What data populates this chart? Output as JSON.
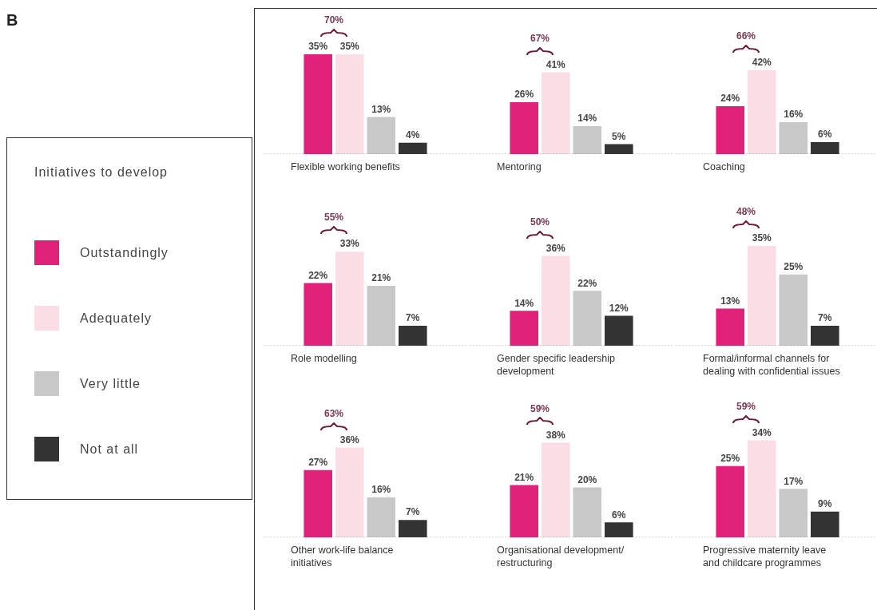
{
  "chart_data": [
    {
      "type": "other",
      "title": "B"
    },
    {
      "type": "bar",
      "xlabel": "Flexible working benefits",
      "categories": [
        null
      ],
      "tick_labels": false,
      "legend": "left",
      "legend_title": "Initiatives to develop",
      "annotations": [
        "70%"
      ],
      "series": [
        {
          "name": "Outstandingly",
          "color": "#e0217a",
          "values": [
            35
          ],
          "value_labels": [
            "35%"
          ]
        },
        {
          "name": "Adequately",
          "color": "#fbdde6",
          "values": [
            35
          ],
          "value_labels": [
            "35%"
          ]
        },
        {
          "name": "Very little",
          "color": "#c8c8c8",
          "values": [
            13
          ],
          "value_labels": [
            "13%"
          ]
        },
        {
          "name": "Not at all",
          "color": "#333333",
          "values": [
            4
          ],
          "value_labels": [
            "4%"
          ]
        }
      ]
    },
    {
      "type": "bar",
      "xlabel": "Mentoring",
      "categories": [
        null
      ],
      "tick_labels": false,
      "annotations": [
        "67%"
      ],
      "series": [
        {
          "color": "#e0217a",
          "values": [
            26
          ],
          "value_labels": [
            "26%"
          ]
        },
        {
          "color": "#fbdde6",
          "values": [
            41
          ],
          "value_labels": [
            "41%"
          ]
        },
        {
          "color": "#c8c8c8",
          "values": [
            14
          ],
          "value_labels": [
            "14%"
          ]
        },
        {
          "color": "#333333",
          "values": [
            5
          ],
          "value_labels": [
            "5%"
          ]
        }
      ]
    },
    {
      "type": "bar",
      "xlabel": "Coaching",
      "categories": [
        null
      ],
      "tick_labels": false,
      "annotations": [
        "66%"
      ],
      "series": [
        {
          "color": "#e0217a",
          "values": [
            24
          ],
          "value_labels": [
            "24%"
          ]
        },
        {
          "color": "#fbdde6",
          "values": [
            42
          ],
          "value_labels": [
            "42%"
          ]
        },
        {
          "color": "#c8c8c8",
          "values": [
            16
          ],
          "value_labels": [
            "16%"
          ]
        },
        {
          "color": "#333333",
          "values": [
            6
          ],
          "value_labels": [
            "6%"
          ]
        }
      ]
    },
    {
      "type": "bar",
      "xlabel": "Role modelling",
      "categories": [
        null
      ],
      "tick_labels": false,
      "annotations": [
        "55%"
      ],
      "series": [
        {
          "color": "#e0217a",
          "values": [
            22
          ],
          "value_labels": [
            "22%"
          ]
        },
        {
          "color": "#fbdde6",
          "values": [
            33
          ],
          "value_labels": [
            "33%"
          ]
        },
        {
          "color": "#c8c8c8",
          "values": [
            21
          ],
          "value_labels": [
            "21%"
          ]
        },
        {
          "color": "#333333",
          "values": [
            7
          ],
          "value_labels": [
            "7%"
          ]
        }
      ]
    },
    {
      "type": "bar",
      "xlabel": "Gender specific leadership development",
      "categories": [
        null
      ],
      "tick_labels": false,
      "annotations": [
        "50%"
      ],
      "series": [
        {
          "color": "#e0217a",
          "values": [
            14
          ],
          "value_labels": [
            "14%"
          ]
        },
        {
          "color": "#fbdde6",
          "values": [
            36
          ],
          "value_labels": [
            "36%"
          ]
        },
        {
          "color": "#c8c8c8",
          "values": [
            22
          ],
          "value_labels": [
            "22%"
          ]
        },
        {
          "color": "#333333",
          "values": [
            12
          ],
          "value_labels": [
            "12%"
          ]
        }
      ]
    },
    {
      "type": "bar",
      "xlabel": "Formal/informal channels for dealing with confidential issues",
      "categories": [
        null
      ],
      "tick_labels": false,
      "annotations": [
        "48%"
      ],
      "series": [
        {
          "color": "#e0217a",
          "values": [
            13
          ],
          "value_labels": [
            "13%"
          ]
        },
        {
          "color": "#fbdde6",
          "values": [
            35
          ],
          "value_labels": [
            "35%"
          ]
        },
        {
          "color": "#c8c8c8",
          "values": [
            25
          ],
          "value_labels": [
            "25%"
          ]
        },
        {
          "color": "#333333",
          "values": [
            7
          ],
          "value_labels": [
            "7%"
          ]
        }
      ]
    },
    {
      "type": "bar",
      "xlabel": "Other work-life balance initiatives",
      "categories": [
        null
      ],
      "tick_labels": false,
      "annotations": [
        "63%"
      ],
      "series": [
        {
          "color": "#e0217a",
          "values": [
            27
          ],
          "value_labels": [
            "27%"
          ]
        },
        {
          "color": "#fbdde6",
          "values": [
            36
          ],
          "value_labels": [
            "36%"
          ]
        },
        {
          "color": "#c8c8c8",
          "values": [
            16
          ],
          "value_labels": [
            "16%"
          ]
        },
        {
          "color": "#333333",
          "values": [
            7
          ],
          "value_labels": [
            "7%"
          ]
        }
      ]
    },
    {
      "type": "bar",
      "xlabel": "Organisational development/ restructuring",
      "categories": [
        null
      ],
      "tick_labels": false,
      "annotations": [
        "59%"
      ],
      "series": [
        {
          "color": "#e0217a",
          "values": [
            21
          ],
          "value_labels": [
            "21%"
          ]
        },
        {
          "color": "#fbdde6",
          "values": [
            38
          ],
          "value_labels": [
            "38%"
          ]
        },
        {
          "color": "#c8c8c8",
          "values": [
            20
          ],
          "value_labels": [
            "20%"
          ]
        },
        {
          "color": "#333333",
          "values": [
            6
          ],
          "value_labels": [
            "6%"
          ]
        }
      ]
    },
    {
      "type": "bar",
      "xlabel": "Progressive maternity leave and childcare programmes",
      "categories": [
        null
      ],
      "tick_labels": false,
      "annotations": [
        "59%"
      ],
      "series": [
        {
          "color": "#e0217a",
          "values": [
            25
          ],
          "value_labels": [
            "25%"
          ]
        },
        {
          "color": "#fbdde6",
          "values": [
            34
          ],
          "value_labels": [
            "34%"
          ]
        },
        {
          "color": "#c8c8c8",
          "values": [
            17
          ],
          "value_labels": [
            "17%"
          ]
        },
        {
          "color": "#333333",
          "values": [
            9
          ],
          "value_labels": [
            "9%"
          ]
        }
      ]
    }
  ]
}
